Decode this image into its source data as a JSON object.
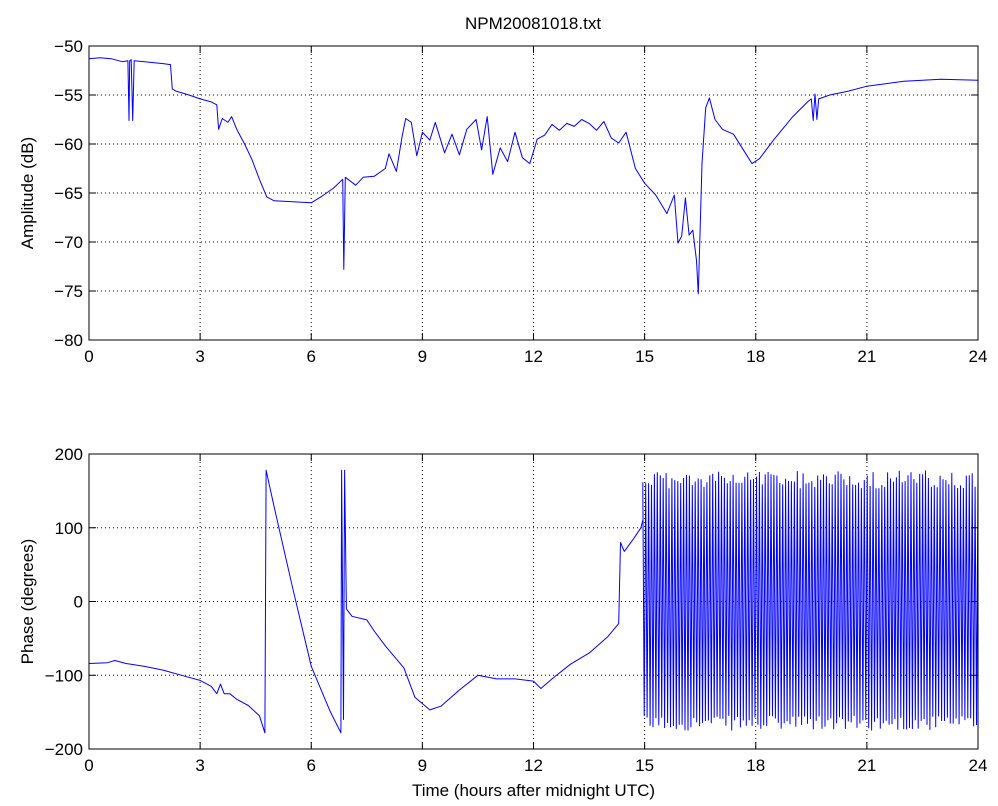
{
  "figure_title": "NPM20081018.txt",
  "colors": {
    "line": "#0000ff",
    "axes": "#000000",
    "grid": "#000000",
    "background": "#ffffff"
  },
  "chart_data": [
    {
      "type": "line",
      "title": "NPM20081018.txt",
      "xlabel": "",
      "ylabel": "Amplitude (dB)",
      "xlim": [
        0,
        24
      ],
      "ylim": [
        -80,
        -50
      ],
      "xticks": [
        0,
        3,
        6,
        9,
        12,
        15,
        18,
        21,
        24
      ],
      "xtick_labels": [
        "0",
        "3",
        "6",
        "9",
        "12",
        "15",
        "18",
        "21",
        "24"
      ],
      "yticks": [
        -80,
        -75,
        -70,
        -65,
        -60,
        -55,
        -50
      ],
      "ytick_labels": [
        "−80",
        "−75",
        "−70",
        "−65",
        "−60",
        "−55",
        "−50"
      ],
      "grid": true,
      "series": [
        {
          "color": "#0000ff",
          "points": [
            [
              0,
              -51.3
            ],
            [
              0.3,
              -51.2
            ],
            [
              0.6,
              -51.3
            ],
            [
              0.9,
              -51.6
            ],
            [
              1.05,
              -51.5
            ],
            [
              1.08,
              -57.6
            ],
            [
              1.1,
              -51.5
            ],
            [
              1.14,
              -51.4
            ],
            [
              1.18,
              -57.6
            ],
            [
              1.22,
              -51.5
            ],
            [
              1.5,
              -51.6
            ],
            [
              2.0,
              -51.8
            ],
            [
              2.2,
              -51.9
            ],
            [
              2.25,
              -54.4
            ],
            [
              2.35,
              -54.6
            ],
            [
              2.7,
              -55.0
            ],
            [
              3.0,
              -55.4
            ],
            [
              3.3,
              -55.7
            ],
            [
              3.45,
              -56.0
            ],
            [
              3.5,
              -58.5
            ],
            [
              3.6,
              -57.4
            ],
            [
              3.75,
              -57.8
            ],
            [
              3.85,
              -57.2
            ],
            [
              4.0,
              -58.6
            ],
            [
              4.2,
              -60.0
            ],
            [
              4.4,
              -61.6
            ],
            [
              4.6,
              -63.6
            ],
            [
              4.8,
              -65.4
            ],
            [
              5.0,
              -65.8
            ],
            [
              5.5,
              -65.9
            ],
            [
              6.0,
              -66.0
            ],
            [
              6.3,
              -65.3
            ],
            [
              6.6,
              -64.5
            ],
            [
              6.85,
              -63.6
            ],
            [
              6.88,
              -72.8
            ],
            [
              6.92,
              -63.4
            ],
            [
              7.2,
              -64.2
            ],
            [
              7.4,
              -63.4
            ],
            [
              7.7,
              -63.3
            ],
            [
              8.0,
              -62.5
            ],
            [
              8.1,
              -61.0
            ],
            [
              8.3,
              -62.8
            ],
            [
              8.45,
              -59.3
            ],
            [
              8.55,
              -57.4
            ],
            [
              8.7,
              -57.8
            ],
            [
              8.85,
              -61.2
            ],
            [
              9.0,
              -58.8
            ],
            [
              9.2,
              -59.6
            ],
            [
              9.35,
              -57.8
            ],
            [
              9.6,
              -60.9
            ],
            [
              9.8,
              -59.0
            ],
            [
              10.0,
              -61.1
            ],
            [
              10.2,
              -58.5
            ],
            [
              10.45,
              -57.5
            ],
            [
              10.6,
              -60.6
            ],
            [
              10.75,
              -57.2
            ],
            [
              10.9,
              -63.1
            ],
            [
              11.1,
              -60.4
            ],
            [
              11.3,
              -61.8
            ],
            [
              11.5,
              -58.8
            ],
            [
              11.7,
              -61.4
            ],
            [
              11.9,
              -62.0
            ],
            [
              12.1,
              -59.5
            ],
            [
              12.3,
              -59.1
            ],
            [
              12.5,
              -58.0
            ],
            [
              12.7,
              -58.6
            ],
            [
              12.9,
              -57.9
            ],
            [
              13.1,
              -58.2
            ],
            [
              13.3,
              -57.5
            ],
            [
              13.5,
              -57.9
            ],
            [
              13.7,
              -58.6
            ],
            [
              13.9,
              -57.7
            ],
            [
              14.1,
              -59.4
            ],
            [
              14.3,
              -59.9
            ],
            [
              14.5,
              -58.8
            ],
            [
              14.75,
              -62.5
            ],
            [
              15.0,
              -64.0
            ],
            [
              15.3,
              -65.2
            ],
            [
              15.6,
              -67.1
            ],
            [
              15.8,
              -65.2
            ],
            [
              15.9,
              -70.1
            ],
            [
              16.0,
              -69.4
            ],
            [
              16.1,
              -65.5
            ],
            [
              16.2,
              -69.3
            ],
            [
              16.3,
              -68.8
            ],
            [
              16.4,
              -71.9
            ],
            [
              16.45,
              -75.3
            ],
            [
              16.55,
              -62.0
            ],
            [
              16.65,
              -56.3
            ],
            [
              16.75,
              -55.3
            ],
            [
              16.9,
              -57.5
            ],
            [
              17.1,
              -58.5
            ],
            [
              17.4,
              -59.0
            ],
            [
              17.7,
              -60.8
            ],
            [
              17.9,
              -62.0
            ],
            [
              18.1,
              -61.5
            ],
            [
              18.5,
              -59.5
            ],
            [
              19.0,
              -57.2
            ],
            [
              19.4,
              -55.7
            ],
            [
              19.5,
              -55.4
            ],
            [
              19.55,
              -57.6
            ],
            [
              19.6,
              -54.9
            ],
            [
              19.65,
              -57.5
            ],
            [
              19.7,
              -55.4
            ],
            [
              20.0,
              -55.0
            ],
            [
              20.5,
              -54.6
            ],
            [
              21.0,
              -54.1
            ],
            [
              22.0,
              -53.6
            ],
            [
              23.0,
              -53.4
            ],
            [
              24.0,
              -53.5
            ]
          ]
        }
      ]
    },
    {
      "type": "line",
      "title": "",
      "xlabel": "Time (hours after midnight UTC)",
      "ylabel": "Phase (degrees)",
      "xlim": [
        0,
        24
      ],
      "ylim": [
        -200,
        200
      ],
      "xticks": [
        0,
        3,
        6,
        9,
        12,
        15,
        18,
        21,
        24
      ],
      "xtick_labels": [
        "0",
        "3",
        "6",
        "9",
        "12",
        "15",
        "18",
        "21",
        "24"
      ],
      "yticks": [
        -200,
        -100,
        0,
        100,
        200
      ],
      "ytick_labels": [
        "−200",
        "−100",
        "0",
        "100",
        "200"
      ],
      "grid": true,
      "series": [
        {
          "color": "#0000ff",
          "points": [
            [
              0,
              -84
            ],
            [
              0.5,
              -83
            ],
            [
              0.7,
              -80
            ],
            [
              1.0,
              -84
            ],
            [
              1.5,
              -88
            ],
            [
              2.0,
              -93
            ],
            [
              2.5,
              -100
            ],
            [
              3.0,
              -107
            ],
            [
              3.3,
              -115
            ],
            [
              3.45,
              -125
            ],
            [
              3.55,
              -112
            ],
            [
              3.65,
              -125
            ],
            [
              3.8,
              -125
            ],
            [
              4.0,
              -133
            ],
            [
              4.3,
              -141
            ],
            [
              4.6,
              -155
            ],
            [
              4.75,
              -178
            ],
            [
              4.78,
              178
            ],
            [
              5.0,
              128
            ],
            [
              5.5,
              18
            ],
            [
              6.0,
              -88
            ],
            [
              6.5,
              -148
            ],
            [
              6.8,
              -178
            ],
            [
              6.82,
              178
            ],
            [
              6.87,
              -160
            ],
            [
              6.9,
              178
            ],
            [
              6.95,
              -10
            ],
            [
              7.1,
              -20
            ],
            [
              7.5,
              -25
            ],
            [
              7.7,
              -40
            ],
            [
              8.0,
              -60
            ],
            [
              8.5,
              -90
            ],
            [
              8.8,
              -130
            ],
            [
              9.2,
              -147
            ],
            [
              9.5,
              -142
            ],
            [
              10.0,
              -120
            ],
            [
              10.5,
              -100
            ],
            [
              11.0,
              -105
            ],
            [
              11.5,
              -105
            ],
            [
              12.0,
              -108
            ],
            [
              12.2,
              -118
            ],
            [
              12.5,
              -105
            ],
            [
              13.0,
              -85
            ],
            [
              13.5,
              -70
            ],
            [
              14.0,
              -48
            ],
            [
              14.3,
              -30
            ],
            [
              14.35,
              80
            ],
            [
              14.45,
              68
            ],
            [
              14.7,
              85
            ],
            [
              14.9,
              100
            ],
            [
              14.95,
              110
            ]
          ]
        }
      ],
      "wrapped_segment": {
        "x_start": 14.95,
        "x_end": 24.0,
        "min": -175,
        "max": 178
      }
    }
  ]
}
